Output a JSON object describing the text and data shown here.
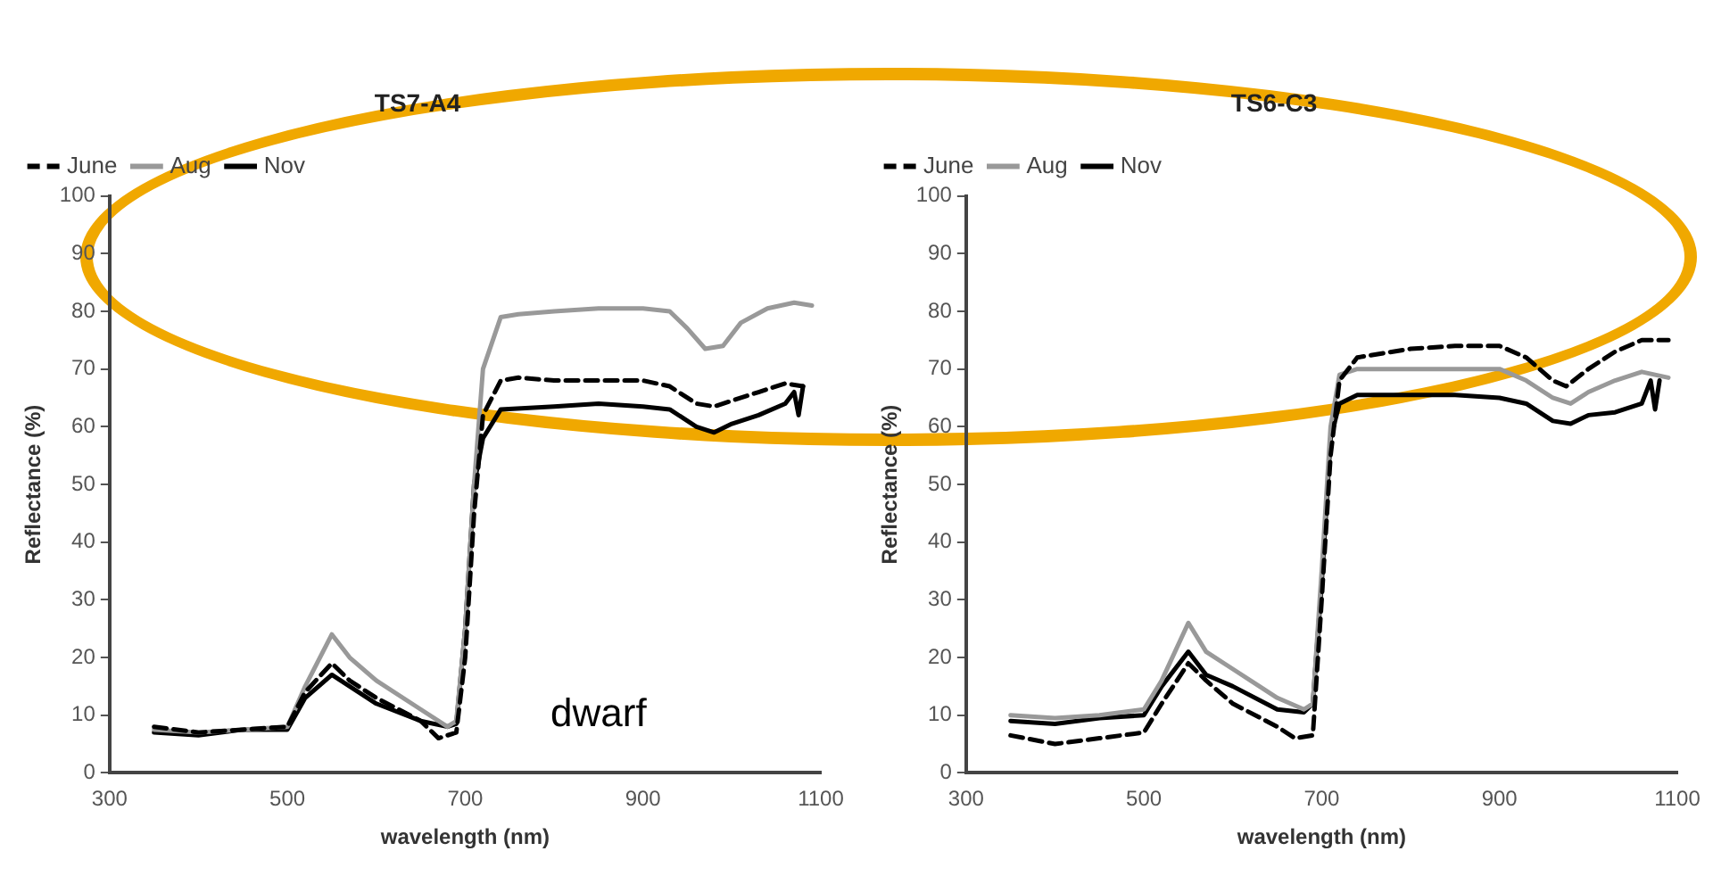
{
  "chart_data": [
    {
      "type": "line",
      "title": "TS7-A4",
      "xlabel": "wavelength (nm)",
      "ylabel": "Reflectance (%)",
      "xlim": [
        300,
        1100
      ],
      "xticks": [
        300,
        500,
        700,
        900,
        1100
      ],
      "ylim": [
        0,
        100
      ],
      "yticks": [
        0,
        10,
        20,
        30,
        40,
        50,
        60,
        70,
        80,
        90,
        100
      ],
      "grid": false,
      "legend": "top left",
      "marker": "none",
      "annotations": [
        "dwarf"
      ],
      "series": [
        {
          "name": "June",
          "color": "#000000",
          "line_style": "dashed",
          "x": [
            350,
            400,
            450,
            500,
            520,
            550,
            570,
            600,
            650,
            670,
            690,
            700,
            710,
            720,
            740,
            760,
            800,
            850,
            900,
            930,
            960,
            980,
            1000,
            1030,
            1060,
            1080
          ],
          "values": [
            8,
            7,
            7.5,
            8,
            14,
            19,
            16,
            13,
            9,
            6,
            7,
            20,
            45,
            62,
            68,
            68.5,
            68,
            68,
            68,
            67,
            64,
            63.5,
            64.5,
            66,
            67.5,
            67
          ]
        },
        {
          "name": "Aug",
          "color": "#999999",
          "line_style": "solid",
          "x": [
            350,
            400,
            450,
            500,
            520,
            550,
            570,
            600,
            650,
            680,
            690,
            700,
            710,
            720,
            740,
            760,
            800,
            850,
            900,
            930,
            950,
            970,
            990,
            1010,
            1040,
            1070,
            1090
          ],
          "values": [
            7.5,
            7,
            7.5,
            8,
            15,
            24,
            20,
            16,
            11,
            8,
            9,
            25,
            50,
            70,
            79,
            79.5,
            80,
            80.5,
            80.5,
            80,
            77,
            73.5,
            74,
            78,
            80.5,
            81.5,
            81
          ]
        },
        {
          "name": "Nov",
          "color": "#000000",
          "line_style": "solid",
          "x": [
            350,
            400,
            450,
            500,
            520,
            550,
            570,
            600,
            650,
            680,
            690,
            700,
            710,
            720,
            740,
            800,
            850,
            900,
            930,
            960,
            980,
            1000,
            1030,
            1060,
            1070,
            1075,
            1080
          ],
          "values": [
            7,
            6.5,
            7.5,
            7.5,
            13,
            17,
            15,
            12,
            9,
            8,
            8.5,
            25,
            50,
            58,
            63,
            63.5,
            64,
            63.5,
            63,
            60,
            59,
            60.5,
            62,
            64,
            66,
            62,
            67
          ]
        }
      ]
    },
    {
      "type": "line",
      "title": "TS6-C3",
      "xlabel": "wavelength (nm)",
      "ylabel": "Reflectance (%)",
      "xlim": [
        300,
        1100
      ],
      "xticks": [
        300,
        500,
        700,
        900,
        1100
      ],
      "ylim": [
        0,
        100
      ],
      "yticks": [
        0,
        10,
        20,
        30,
        40,
        50,
        60,
        70,
        80,
        90,
        100
      ],
      "grid": false,
      "legend": "top left",
      "marker": "none",
      "series": [
        {
          "name": "June",
          "color": "#000000",
          "line_style": "dashed",
          "x": [
            350,
            400,
            450,
            500,
            520,
            550,
            570,
            600,
            650,
            670,
            690,
            700,
            710,
            720,
            740,
            800,
            850,
            900,
            930,
            960,
            975,
            1000,
            1030,
            1060,
            1090
          ],
          "values": [
            6.5,
            5,
            6,
            7,
            12,
            19,
            16,
            12,
            8,
            6,
            6.5,
            30,
            55,
            68,
            72,
            73.5,
            74,
            74,
            72,
            68,
            67,
            70,
            73,
            75,
            75
          ]
        },
        {
          "name": "Aug",
          "color": "#999999",
          "line_style": "solid",
          "x": [
            350,
            400,
            450,
            500,
            520,
            550,
            570,
            600,
            650,
            680,
            690,
            700,
            710,
            720,
            740,
            800,
            850,
            900,
            930,
            960,
            980,
            1000,
            1030,
            1060,
            1090
          ],
          "values": [
            10,
            9.5,
            10,
            11,
            16,
            26,
            21,
            18,
            13,
            11,
            12,
            35,
            60,
            69,
            70,
            70,
            70,
            70,
            68,
            65,
            64,
            66,
            68,
            69.5,
            68.5
          ]
        },
        {
          "name": "Nov",
          "color": "#000000",
          "line_style": "solid",
          "x": [
            350,
            400,
            450,
            500,
            520,
            550,
            570,
            600,
            650,
            680,
            690,
            700,
            710,
            720,
            740,
            800,
            850,
            900,
            930,
            960,
            980,
            1000,
            1030,
            1060,
            1070,
            1075,
            1080
          ],
          "values": [
            9,
            8.5,
            9.5,
            10,
            15,
            21,
            17,
            15,
            11,
            10.5,
            12,
            33,
            58,
            64,
            65.5,
            65.5,
            65.5,
            65,
            64,
            61,
            60.5,
            62,
            62.5,
            64,
            68,
            63,
            68
          ]
        }
      ]
    }
  ]
}
